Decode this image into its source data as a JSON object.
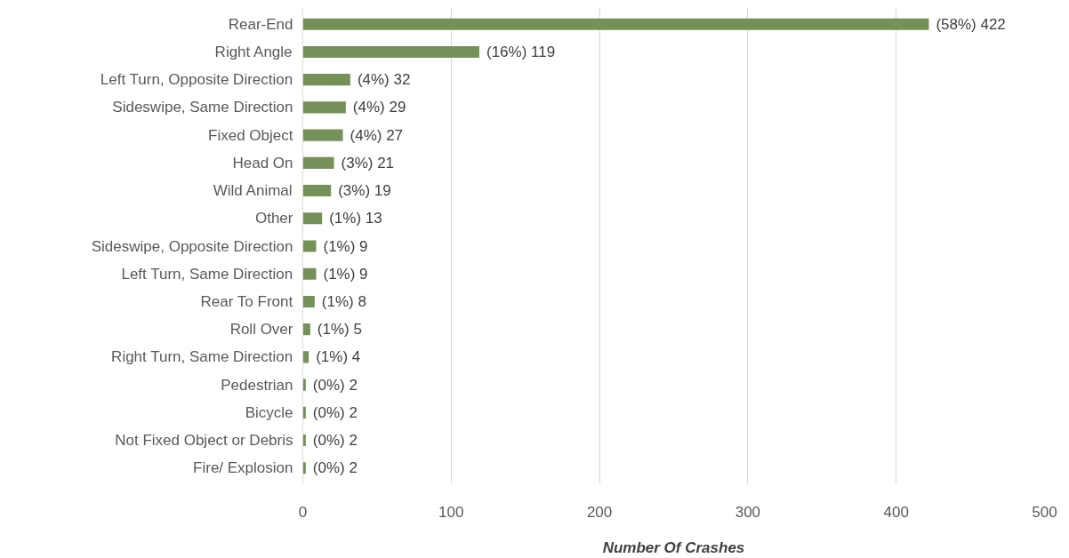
{
  "chart_data": {
    "type": "bar",
    "orientation": "horizontal",
    "xlabel": "Number Of Crashes",
    "categories": [
      "Rear-End",
      "Right Angle",
      "Left Turn, Opposite Direction",
      "Sideswipe, Same Direction",
      "Fixed Object",
      "Head On",
      "Wild Animal",
      "Other",
      "Sideswipe, Opposite Direction",
      "Left Turn, Same Direction",
      "Rear To Front",
      "Roll Over",
      "Right Turn, Same Direction",
      "Pedestrian",
      "Bicycle",
      "Not Fixed Object or Debris",
      "Fire/ Explosion"
    ],
    "values": [
      422,
      119,
      32,
      29,
      27,
      21,
      19,
      13,
      9,
      9,
      8,
      5,
      4,
      2,
      2,
      2,
      2
    ],
    "value_labels": [
      "(58%) 422",
      "(16%) 119",
      "(4%) 32",
      "(4%) 29",
      "(4%) 27",
      "(3%) 21",
      "(3%) 19",
      "(1%) 13",
      "(1%) 9",
      "(1%) 9",
      "(1%) 8",
      "(1%) 5",
      "(1%) 4",
      "(0%) 2",
      "(0%) 2",
      "(0%) 2",
      "(0%) 2"
    ],
    "color": "#76905a",
    "xlim": [
      0,
      500
    ],
    "xticks": [
      0,
      100,
      200,
      300,
      400,
      500
    ],
    "grid": "x"
  }
}
